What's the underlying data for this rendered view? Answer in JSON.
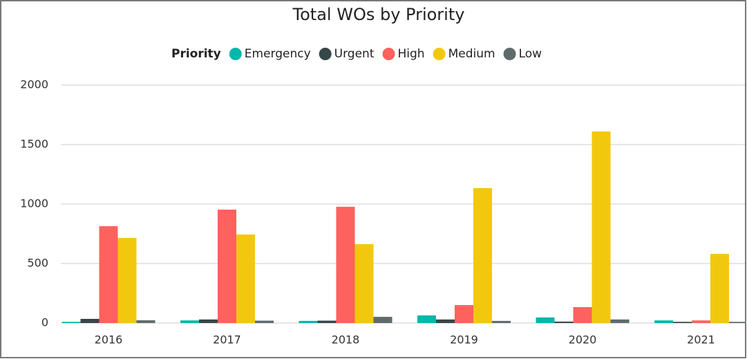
{
  "chart_data": {
    "type": "bar",
    "title": "Total WOs by Priority",
    "legend_title": "Priority",
    "categories": [
      "2016",
      "2017",
      "2018",
      "2019",
      "2020",
      "2021"
    ],
    "series": [
      {
        "name": "Emergency",
        "color": "#01B8AA",
        "values": [
          10,
          22,
          18,
          64,
          47,
          22
        ]
      },
      {
        "name": "Urgent",
        "color": "#374649",
        "values": [
          35,
          30,
          20,
          30,
          12,
          10
        ]
      },
      {
        "name": "High",
        "color": "#FD625E",
        "values": [
          814,
          953,
          977,
          151,
          134,
          22
        ]
      },
      {
        "name": "Medium",
        "color": "#F2C80F",
        "values": [
          715,
          744,
          663,
          1134,
          1610,
          581
        ]
      },
      {
        "name": "Low",
        "color": "#5F6B6D",
        "values": [
          23,
          20,
          52,
          18,
          30,
          10
        ]
      }
    ],
    "ylim": [
      0,
      2000
    ],
    "yticks": [
      0,
      500,
      1000,
      1500,
      2000
    ],
    "grid": true
  }
}
